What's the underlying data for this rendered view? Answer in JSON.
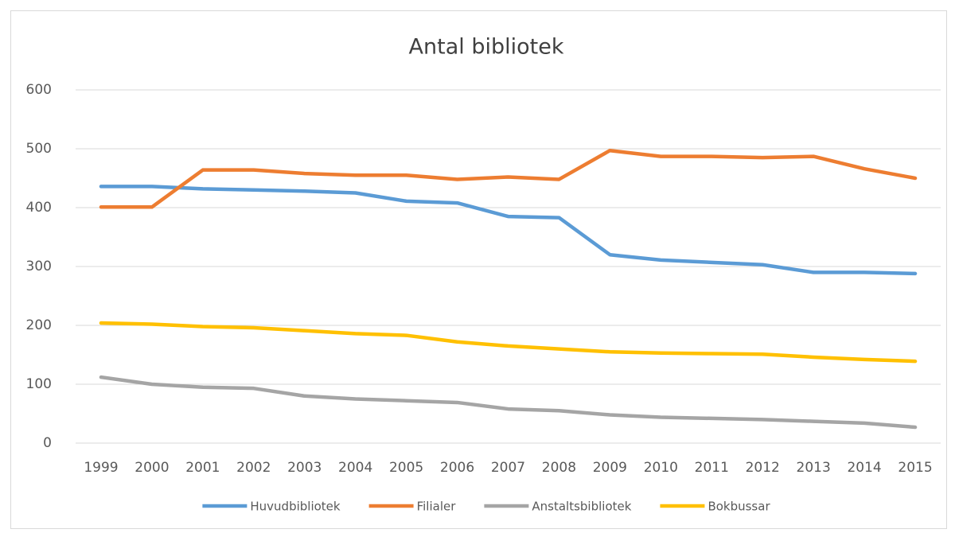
{
  "chart_data": {
    "type": "line",
    "title": "Antal bibliotek",
    "categories": [
      "1999",
      "2000",
      "2001",
      "2002",
      "2003",
      "2004",
      "2005",
      "2006",
      "2007",
      "2008",
      "2009",
      "2010",
      "2011",
      "2012",
      "2013",
      "2014",
      "2015"
    ],
    "series": [
      {
        "name": "Huvudbibliotek",
        "color": "#5b9bd5",
        "values": [
          436,
          436,
          432,
          430,
          428,
          425,
          411,
          408,
          385,
          383,
          320,
          311,
          307,
          303,
          290,
          290,
          288
        ]
      },
      {
        "name": "Filialer",
        "color": "#ed7d31",
        "values": [
          401,
          401,
          464,
          464,
          458,
          455,
          455,
          448,
          452,
          448,
          497,
          487,
          487,
          485,
          487,
          466,
          450
        ]
      },
      {
        "name": "Anstaltsbibliotek",
        "color": "#a5a5a5",
        "values": [
          112,
          100,
          95,
          93,
          80,
          75,
          72,
          69,
          58,
          55,
          48,
          44,
          42,
          40,
          37,
          34,
          27
        ]
      },
      {
        "name": "Bokbussar",
        "color": "#ffc000",
        "values": [
          204,
          202,
          198,
          196,
          191,
          186,
          183,
          172,
          165,
          160,
          155,
          153,
          152,
          151,
          146,
          142,
          139
        ]
      }
    ],
    "ylim": [
      0,
      600
    ],
    "yticks": [
      0,
      100,
      200,
      300,
      400,
      500,
      600
    ],
    "grid": true,
    "legend": "bottom"
  }
}
